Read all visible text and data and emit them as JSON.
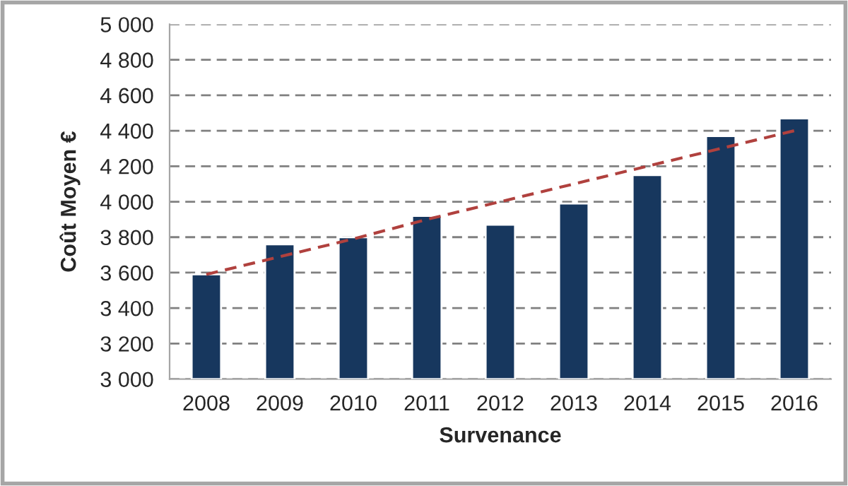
{
  "chart_data": {
    "type": "bar",
    "xlabel": "Survenance",
    "ylabel": "Coût Moyen €",
    "categories": [
      "2008",
      "2009",
      "2010",
      "2011",
      "2012",
      "2013",
      "2014",
      "2015",
      "2016"
    ],
    "series": [
      {
        "color": "#17375e",
        "values": [
          3590,
          3760,
          3800,
          3920,
          3870,
          3990,
          4150,
          4370,
          4470
        ]
      },
      {
        "type": "line",
        "color": "#b0413e",
        "line_style": "dashed",
        "values": [
          3590,
          3690,
          3790,
          3900,
          4000,
          4100,
          4200,
          4300,
          4400
        ]
      }
    ],
    "ylim": [
      3000,
      5000
    ],
    "yticks": [
      {
        "value": 3000,
        "label": "3 000"
      },
      {
        "value": 3200,
        "label": "3 200"
      },
      {
        "value": 3400,
        "label": "3 400"
      },
      {
        "value": 3600,
        "label": "3 600"
      },
      {
        "value": 3800,
        "label": "3 800"
      },
      {
        "value": 4000,
        "label": "4 000"
      },
      {
        "value": 4200,
        "label": "4 200"
      },
      {
        "value": 4400,
        "label": "4 400"
      },
      {
        "value": 4600,
        "label": "4 600"
      },
      {
        "value": 4800,
        "label": "4 800"
      },
      {
        "value": 5000,
        "label": "5 000"
      }
    ],
    "grid": "y",
    "legend": false
  }
}
